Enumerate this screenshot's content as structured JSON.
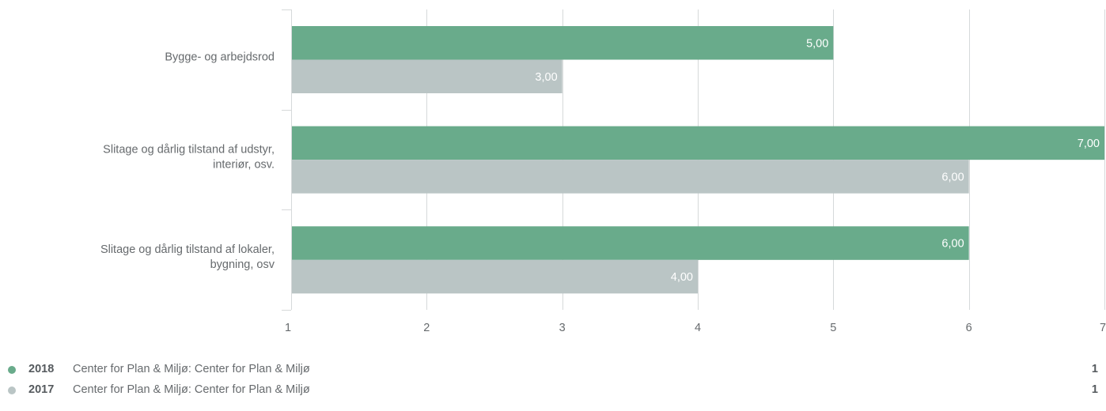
{
  "chart_data": {
    "type": "bar",
    "orientation": "horizontal",
    "categories": [
      [
        "Bygge- og arbejdsrod"
      ],
      [
        "Slitage og dårlig tilstand af udstyr,",
        "interiør, osv."
      ],
      [
        "Slitage og dårlig tilstand af lokaler,",
        "bygning, osv"
      ]
    ],
    "series": [
      {
        "name": "2018",
        "color": "#69ab8b",
        "values": [
          5,
          7,
          6
        ],
        "labels": [
          "5,00",
          "7,00",
          "6,00"
        ]
      },
      {
        "name": "2017",
        "color": "#bac5c5",
        "values": [
          3,
          6,
          4
        ],
        "labels": [
          "3,00",
          "6,00",
          "4,00"
        ]
      }
    ],
    "xlim": [
      1,
      7
    ],
    "xticks": [
      "1",
      "2",
      "3",
      "4",
      "5",
      "6",
      "7"
    ],
    "grid": true,
    "legend_position": "bottom"
  },
  "legend": [
    {
      "year": "2018",
      "name": "Center for Plan & Miljø: Center for Plan & Miljø",
      "count": "1",
      "color": "#69ab8b"
    },
    {
      "year": "2017",
      "name": "Center for Plan & Miljø: Center for Plan & Miljø",
      "count": "1",
      "color": "#bac5c5"
    }
  ]
}
